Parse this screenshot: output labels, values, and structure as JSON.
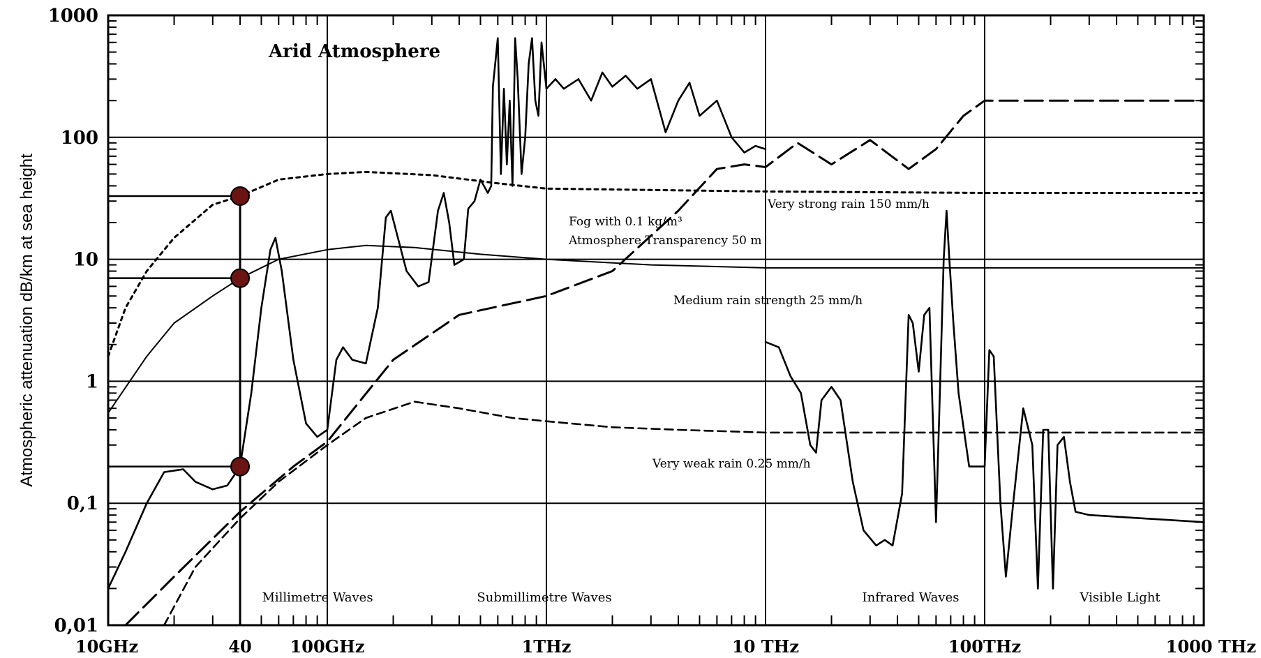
{
  "chart_data": {
    "type": "line",
    "title": "Arid Atmosphere",
    "ylabel": "Atmospheric attenuation dB/km at sea height",
    "xlabel": "",
    "x_scale": "log",
    "y_scale": "log",
    "xlim_ghz": [
      10,
      1000000
    ],
    "ylim": [
      0.01,
      1000
    ],
    "grid": "major decades horizontal and vertical",
    "y_ticks": [
      {
        "value": 1000,
        "label": "1000"
      },
      {
        "value": 100,
        "label": "100"
      },
      {
        "value": 10,
        "label": "10"
      },
      {
        "value": 1,
        "label": "1"
      },
      {
        "value": 0.1,
        "label": "0,1"
      },
      {
        "value": 0.01,
        "label": "0,01"
      }
    ],
    "x_ticks": [
      {
        "value_ghz": 10,
        "label": "10GHz"
      },
      {
        "value_ghz": 40,
        "label": "40"
      },
      {
        "value_ghz": 100,
        "label": "100GHz"
      },
      {
        "value_ghz": 1000,
        "label": "1THz"
      },
      {
        "value_ghz": 10000,
        "label": "10 THz"
      },
      {
        "value_ghz": 100000,
        "label": "100THz"
      },
      {
        "value_ghz": 1000000,
        "label": "1000 THz"
      }
    ],
    "regions": [
      {
        "label": "Millimetre Waves",
        "x_ghz": 30
      },
      {
        "label": "Submillimetre Waves",
        "x_ghz": 300
      },
      {
        "label": "Infrared Waves",
        "x_ghz": 30000
      },
      {
        "label": "Visible Light",
        "x_ghz": 500000
      }
    ],
    "annotations": [
      {
        "text": "Fog with 0.1 kg/m³",
        "x_ghz": 700,
        "y": 13
      },
      {
        "text": "Atmosphere Transparency 50 m",
        "x_ghz": 700,
        "y": 8.5
      },
      {
        "text": "Very strong rain 150 mm/h",
        "x_ghz": 10000,
        "y": 36
      },
      {
        "text": "Medium rain strength 25 mm/h",
        "x_ghz": 2000,
        "y": 3.6
      },
      {
        "text": "Very weak rain 0.25 mm/h",
        "x_ghz": 1500,
        "y": 0.2
      }
    ],
    "markers": [
      {
        "x_ghz": 40,
        "y": 33
      },
      {
        "x_ghz": 40,
        "y": 7
      },
      {
        "x_ghz": 40,
        "y": 0.2
      }
    ],
    "series": [
      {
        "style": "solid-thick",
        "points": [
          [
            10,
            0.02
          ],
          [
            12,
            0.04
          ],
          [
            15,
            0.1
          ],
          [
            18,
            0.18
          ],
          [
            22,
            0.19
          ],
          [
            25,
            0.15
          ],
          [
            30,
            0.13
          ],
          [
            35,
            0.14
          ],
          [
            40,
            0.2
          ],
          [
            45,
            0.8
          ],
          [
            50,
            4
          ],
          [
            55,
            12
          ],
          [
            58,
            15
          ],
          [
            62,
            8
          ],
          [
            70,
            1.5
          ],
          [
            80,
            0.45
          ],
          [
            90,
            0.35
          ],
          [
            100,
            0.4
          ],
          [
            110,
            1.5
          ],
          [
            118,
            1.9
          ],
          [
            130,
            1.5
          ],
          [
            150,
            1.4
          ],
          [
            170,
            4
          ],
          [
            185,
            22
          ],
          [
            195,
            25
          ],
          [
            210,
            15
          ],
          [
            230,
            8
          ],
          [
            260,
            6
          ],
          [
            290,
            6.5
          ],
          [
            320,
            25
          ],
          [
            340,
            35
          ],
          [
            360,
            20
          ],
          [
            380,
            9
          ],
          [
            420,
            10
          ],
          [
            440,
            26
          ],
          [
            470,
            30
          ],
          [
            500,
            45
          ],
          [
            540,
            35
          ],
          [
            560,
            40
          ],
          [
            570,
            260
          ],
          [
            600,
            650
          ],
          [
            620,
            50
          ],
          [
            640,
            250
          ],
          [
            660,
            60
          ],
          [
            680,
            200
          ],
          [
            700,
            40
          ],
          [
            720,
            650
          ],
          [
            740,
            300
          ],
          [
            770,
            50
          ],
          [
            800,
            100
          ],
          [
            830,
            400
          ],
          [
            860,
            650
          ],
          [
            890,
            200
          ],
          [
            920,
            150
          ],
          [
            950,
            600
          ],
          [
            1000,
            250
          ],
          [
            1100,
            300
          ],
          [
            1200,
            250
          ],
          [
            1400,
            300
          ],
          [
            1600,
            200
          ],
          [
            1800,
            340
          ],
          [
            2000,
            260
          ],
          [
            2300,
            320
          ],
          [
            2600,
            250
          ],
          [
            3000,
            300
          ],
          [
            3500,
            110
          ],
          [
            4000,
            200
          ],
          [
            4500,
            280
          ],
          [
            5000,
            150
          ],
          [
            6000,
            200
          ],
          [
            7000,
            100
          ],
          [
            8000,
            75
          ],
          [
            9000,
            85
          ],
          [
            10000,
            80
          ]
        ]
      },
      {
        "style": "solid-thick",
        "points": [
          [
            10000,
            2.1
          ],
          [
            11500,
            1.9
          ],
          [
            13000,
            1.1
          ],
          [
            14500,
            0.8
          ],
          [
            16000,
            0.3
          ],
          [
            17000,
            0.26
          ],
          [
            18000,
            0.7
          ],
          [
            20000,
            0.9
          ],
          [
            22000,
            0.7
          ],
          [
            25000,
            0.15
          ],
          [
            28000,
            0.06
          ],
          [
            32000,
            0.045
          ],
          [
            35000,
            0.05
          ],
          [
            38000,
            0.045
          ],
          [
            42000,
            0.12
          ],
          [
            45000,
            3.5
          ],
          [
            47000,
            3
          ],
          [
            50000,
            1.2
          ],
          [
            53000,
            3.5
          ],
          [
            56000,
            4
          ],
          [
            60000,
            0.07
          ],
          [
            62000,
            0.5
          ],
          [
            65000,
            10
          ],
          [
            67000,
            25
          ],
          [
            69000,
            10
          ],
          [
            72000,
            3
          ],
          [
            76000,
            0.8
          ],
          [
            85000,
            0.2
          ],
          [
            100000,
            0.2
          ],
          [
            105000,
            1.8
          ],
          [
            110000,
            1.6
          ],
          [
            118000,
            0.1
          ],
          [
            125000,
            0.025
          ],
          [
            135000,
            0.1
          ],
          [
            150000,
            0.6
          ],
          [
            165000,
            0.3
          ],
          [
            175000,
            0.02
          ],
          [
            185000,
            0.4
          ],
          [
            195000,
            0.4
          ],
          [
            205000,
            0.02
          ],
          [
            215000,
            0.3
          ],
          [
            230000,
            0.35
          ],
          [
            245000,
            0.15
          ],
          [
            260000,
            0.085
          ],
          [
            300000,
            0.08
          ],
          [
            1000000,
            0.07
          ]
        ]
      },
      {
        "name": "Very strong rain 150 mm/h",
        "style": "dotted",
        "points": [
          [
            10,
            1.6
          ],
          [
            12,
            4
          ],
          [
            15,
            8
          ],
          [
            20,
            15
          ],
          [
            30,
            28
          ],
          [
            40,
            33
          ],
          [
            60,
            45
          ],
          [
            100,
            50
          ],
          [
            150,
            52
          ],
          [
            300,
            49
          ],
          [
            600,
            42
          ],
          [
            1000,
            38
          ],
          [
            3000,
            37
          ],
          [
            10000,
            36
          ],
          [
            100000,
            35
          ],
          [
            1000000,
            35
          ]
        ]
      },
      {
        "name": "Medium rain strength 25 mm/h",
        "style": "solid-thin",
        "points": [
          [
            10,
            0.55
          ],
          [
            15,
            1.6
          ],
          [
            20,
            3
          ],
          [
            30,
            5
          ],
          [
            40,
            7
          ],
          [
            60,
            10
          ],
          [
            100,
            12
          ],
          [
            150,
            13
          ],
          [
            250,
            12.5
          ],
          [
            500,
            11
          ],
          [
            1000,
            10
          ],
          [
            3000,
            9
          ],
          [
            10000,
            8.5
          ],
          [
            100000,
            8.5
          ],
          [
            1000000,
            8.5
          ]
        ]
      },
      {
        "name": "Fog with 0.1 kg/m³",
        "style": "long-dash",
        "points": [
          [
            12,
            0.01
          ],
          [
            20,
            0.025
          ],
          [
            40,
            0.085
          ],
          [
            70,
            0.2
          ],
          [
            100,
            0.32
          ],
          [
            200,
            1.5
          ],
          [
            400,
            3.5
          ],
          [
            1000,
            5
          ],
          [
            2000,
            8
          ],
          [
            4000,
            25
          ],
          [
            6000,
            55
          ],
          [
            8000,
            60
          ],
          [
            10000,
            57
          ],
          [
            14000,
            90
          ],
          [
            20000,
            60
          ],
          [
            30000,
            95
          ],
          [
            45000,
            55
          ],
          [
            60000,
            80
          ],
          [
            80000,
            150
          ],
          [
            100000,
            200
          ],
          [
            1000000,
            200
          ]
        ]
      },
      {
        "name": "Very weak rain 0.25 mm/h",
        "style": "short-dash",
        "points": [
          [
            18,
            0.01
          ],
          [
            25,
            0.03
          ],
          [
            40,
            0.075
          ],
          [
            60,
            0.15
          ],
          [
            100,
            0.3
          ],
          [
            150,
            0.5
          ],
          [
            250,
            0.68
          ],
          [
            400,
            0.6
          ],
          [
            700,
            0.5
          ],
          [
            1000,
            0.47
          ],
          [
            2000,
            0.42
          ],
          [
            4000,
            0.4
          ],
          [
            10000,
            0.38
          ],
          [
            100000,
            0.38
          ],
          [
            1000000,
            0.38
          ]
        ]
      }
    ]
  }
}
